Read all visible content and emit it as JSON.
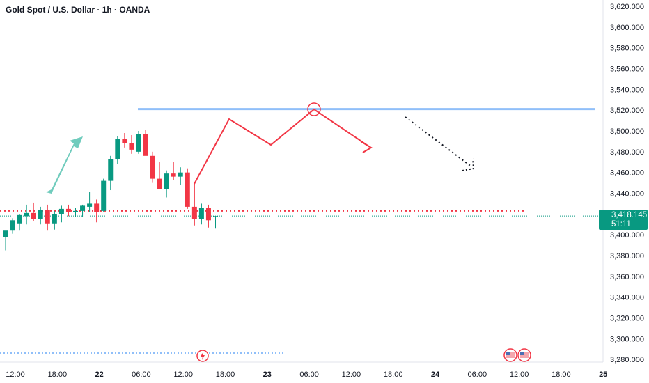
{
  "header": {
    "title": "Gold Spot / U.S. Dollar · 1h · OANDA"
  },
  "last_price": {
    "value": "3,418.145",
    "countdown": "51:11",
    "color": "#089981"
  },
  "colors": {
    "up": "#089981",
    "down": "#f23645",
    "resistance": "#90bff9",
    "arrow_up": "#70ccbd",
    "projection": "#f23645"
  },
  "icons": {
    "event_marker": "lightning-icon",
    "flag_markers": [
      "us-flag-icon",
      "us-flag-icon"
    ]
  },
  "chart_data": {
    "type": "candlestick",
    "title": "Gold Spot / U.S. Dollar · 1h · OANDA",
    "ylim": [
      3270,
      3625
    ],
    "y_ticks": [
      "3,280.000",
      "3,300.000",
      "3,320.000",
      "3,340.000",
      "3,360.000",
      "3,380.000",
      "3,400.000",
      "3,420.000",
      "3,440.000",
      "3,460.000",
      "3,480.000",
      "3,500.000",
      "3,520.000",
      "3,540.000",
      "3,560.000",
      "3,580.000",
      "3,600.000",
      "3,620.000"
    ],
    "y_tick_values": [
      3280,
      3300,
      3320,
      3340,
      3360,
      3380,
      3400,
      3420,
      3440,
      3460,
      3480,
      3500,
      3520,
      3540,
      3560,
      3580,
      3600,
      3620
    ],
    "x_ticks": [
      "12:00",
      "18:00",
      "22",
      "06:00",
      "12:00",
      "18:00",
      "23",
      "06:00",
      "12:00",
      "18:00",
      "24",
      "06:00",
      "12:00",
      "18:00",
      "25"
    ],
    "x_tick_hours": [
      0,
      6,
      12,
      18,
      24,
      30,
      36,
      42,
      48,
      54,
      60,
      66,
      72,
      78,
      84
    ],
    "candles": [
      {
        "o": 3398,
        "h": 3402,
        "l": 3385,
        "c": 3404
      },
      {
        "o": 3404,
        "h": 3416,
        "l": 3401,
        "c": 3414
      },
      {
        "o": 3411,
        "h": 3420,
        "l": 3404,
        "c": 3419
      },
      {
        "o": 3418,
        "h": 3429,
        "l": 3410,
        "c": 3421
      },
      {
        "o": 3421,
        "h": 3431,
        "l": 3413,
        "c": 3415
      },
      {
        "o": 3415,
        "h": 3427,
        "l": 3410,
        "c": 3424
      },
      {
        "o": 3424,
        "h": 3429,
        "l": 3404,
        "c": 3411
      },
      {
        "o": 3411,
        "h": 3423,
        "l": 3405,
        "c": 3420
      },
      {
        "o": 3420,
        "h": 3428,
        "l": 3412,
        "c": 3425
      },
      {
        "o": 3425,
        "h": 3429,
        "l": 3418,
        "c": 3422
      },
      {
        "o": 3422,
        "h": 3426,
        "l": 3417,
        "c": 3423
      },
      {
        "o": 3423,
        "h": 3429,
        "l": 3417,
        "c": 3428
      },
      {
        "o": 3427,
        "h": 3441,
        "l": 3422,
        "c": 3430
      },
      {
        "o": 3430,
        "h": 3434,
        "l": 3412,
        "c": 3422
      },
      {
        "o": 3423,
        "h": 3454,
        "l": 3422,
        "c": 3452
      },
      {
        "o": 3452,
        "h": 3476,
        "l": 3443,
        "c": 3473
      },
      {
        "o": 3473,
        "h": 3495,
        "l": 3468,
        "c": 3492
      },
      {
        "o": 3492,
        "h": 3498,
        "l": 3484,
        "c": 3488
      },
      {
        "o": 3488,
        "h": 3496,
        "l": 3478,
        "c": 3482
      },
      {
        "o": 3480,
        "h": 3500,
        "l": 3478,
        "c": 3497
      },
      {
        "o": 3497,
        "h": 3501,
        "l": 3478,
        "c": 3476
      },
      {
        "o": 3476,
        "h": 3480,
        "l": 3450,
        "c": 3454
      },
      {
        "o": 3454,
        "h": 3470,
        "l": 3445,
        "c": 3444
      },
      {
        "o": 3444,
        "h": 3462,
        "l": 3436,
        "c": 3459
      },
      {
        "o": 3459,
        "h": 3470,
        "l": 3453,
        "c": 3456
      },
      {
        "o": 3456,
        "h": 3465,
        "l": 3448,
        "c": 3460
      },
      {
        "o": 3460,
        "h": 3464,
        "l": 3425,
        "c": 3427
      },
      {
        "o": 3427,
        "h": 3450,
        "l": 3409,
        "c": 3415
      },
      {
        "o": 3415,
        "h": 3430,
        "l": 3410,
        "c": 3426
      },
      {
        "o": 3426,
        "h": 3429,
        "l": 3407,
        "c": 3414
      },
      {
        "o": 3418,
        "h": 3418,
        "l": 3406,
        "c": 3418
      }
    ],
    "resistance_level": 3521,
    "dotted_level": 3423,
    "current_price": 3418.145
  }
}
